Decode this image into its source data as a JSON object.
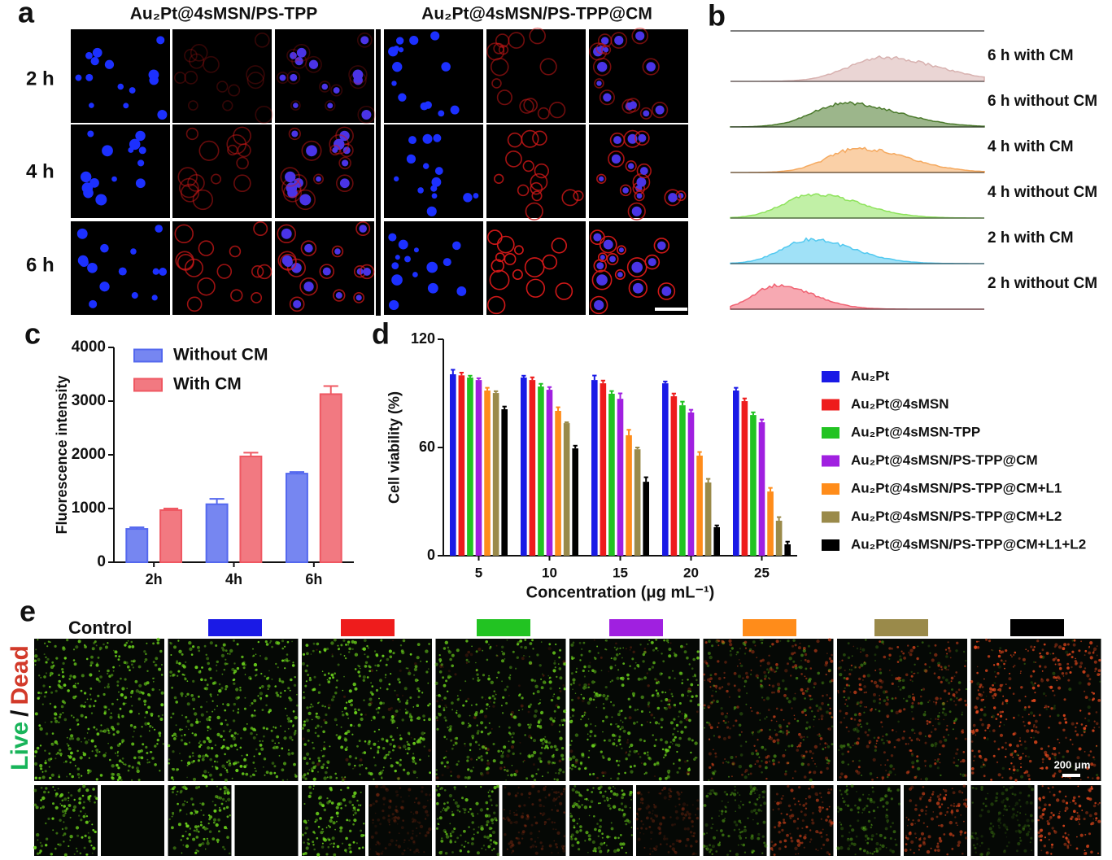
{
  "panel_labels": [
    "a",
    "b",
    "c",
    "d",
    "e"
  ],
  "panel_a": {
    "columns": [
      "Au₂Pt@4sMSN/PS-TPP",
      "Au₂Pt@4sMSN/PS-TPP@CM"
    ],
    "rows": [
      "2 h",
      "4 h",
      "6 h"
    ]
  },
  "panel_b": {
    "labels": [
      "6 h with CM",
      "6 h without CM",
      "4 h with CM",
      "4 h without CM",
      "2 h with CM",
      "2 h without CM"
    ],
    "colors": [
      "#d8b2b0",
      "#4b7a2c",
      "#f5a95f",
      "#8ee35c",
      "#52c9f0",
      "#f06272"
    ]
  },
  "chart_data": [
    {
      "type": "bar",
      "ylabel": "Fluorescence intensity",
      "categories": [
        "2h",
        "4h",
        "6h"
      ],
      "series": [
        {
          "name": "Without CM",
          "color": "#5468ee",
          "values": [
            620,
            1080,
            1650
          ],
          "errors": [
            30,
            100,
            30
          ]
        },
        {
          "name": "With CM",
          "color": "#ef5862",
          "values": [
            970,
            1970,
            3130
          ],
          "errors": [
            30,
            70,
            150
          ]
        }
      ],
      "ylim": [
        0,
        4000
      ],
      "yticks": [
        0,
        1000,
        2000,
        3000,
        4000
      ],
      "legend": "upper left"
    },
    {
      "type": "bar",
      "xlabel": "Concentration (μg mL⁻¹)",
      "ylabel": "Cell viability (%)",
      "categories": [
        "5",
        "10",
        "15",
        "20",
        "25"
      ],
      "series": [
        {
          "name": "Au₂Pt",
          "color": "#1a1ae6",
          "values": [
            100.6,
            98.8,
            97.4,
            95.6,
            91.6
          ],
          "errors": [
            2.5,
            1,
            2.5,
            1,
            1.5
          ]
        },
        {
          "name": "Au₂Pt@4sMSN",
          "color": "#ee1c1c",
          "values": [
            100,
            97.4,
            95.6,
            88.4,
            85.7
          ],
          "errors": [
            1.5,
            1.5,
            1.5,
            1.5,
            1.5
          ]
        },
        {
          "name": "Au₂Pt@4sMSN-TPP",
          "color": "#22c322",
          "values": [
            98.8,
            93.8,
            89.8,
            83.4,
            78
          ],
          "errors": [
            1,
            1.5,
            1.5,
            2,
            1.5
          ]
        },
        {
          "name": "Au₂Pt@4sMSN/PS-TPP@CM",
          "color": "#a020e0",
          "values": [
            97.4,
            92,
            87,
            79.4,
            74
          ],
          "errors": [
            1,
            1.5,
            3,
            1.5,
            1.5
          ]
        },
        {
          "name": "Au₂Pt@4sMSN/PS-TPP@CM+L1",
          "color": "#ff8c1a",
          "values": [
            91.6,
            80.3,
            66.8,
            55.5,
            35.6
          ],
          "errors": [
            1.5,
            2,
            3,
            2,
            2
          ]
        },
        {
          "name": "Au₂Pt@4sMSN/PS-TPP@CM+L2",
          "color": "#9a8a4a",
          "values": [
            90.2,
            73.5,
            59,
            40.6,
            19.4
          ],
          "errors": [
            1,
            0.5,
            1,
            2,
            2
          ]
        },
        {
          "name": "Au₂Pt@4sMSN/PS-TPP@CM+L1+L2",
          "color": "#000000",
          "values": [
            81.2,
            59.5,
            41,
            15.8,
            6.3
          ],
          "errors": [
            1.5,
            1.5,
            2.5,
            1,
            1.5
          ]
        }
      ],
      "ylim": [
        0,
        120
      ],
      "yticks": [
        0,
        60,
        120
      ],
      "legend": "right"
    }
  ],
  "panel_e": {
    "control_label": "Control",
    "group_colors": [
      "#1a1ae6",
      "#ee1c1c",
      "#22c322",
      "#a020e0",
      "#ff8c1a",
      "#9a8a4a",
      "#000000"
    ],
    "side_label": [
      "Live",
      "/",
      "Dead"
    ],
    "scale_bar": "200 μm"
  }
}
